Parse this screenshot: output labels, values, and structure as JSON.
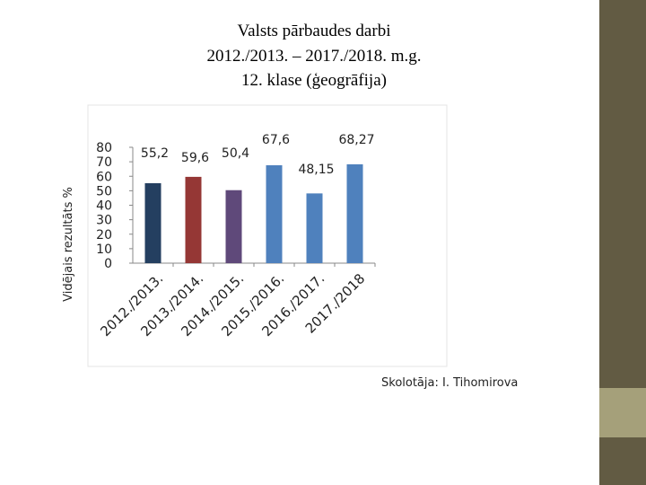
{
  "chart_data": {
    "type": "bar",
    "title": [
      "Valsts pārbaudes darbi",
      "2012./2013. – 2017./2018. m.g.",
      "12. klase (ģeogrāfija)"
    ],
    "y_label": "Vidējais rezultāts %",
    "categories": [
      "2012./2013.",
      "2013./2014.",
      "2014./2015.",
      "2015./2016.",
      "2016./2017.",
      "2017./2018"
    ],
    "values": [
      55.2,
      59.6,
      50.4,
      67.6,
      48.15,
      68.27
    ],
    "value_labels": [
      "55,2",
      "59,6",
      "50,4",
      "67,6",
      "48,15",
      "68,27"
    ],
    "colors": [
      "#243f60",
      "#953735",
      "#5f497a",
      "#4f81bd",
      "#4f81bd",
      "#4f81bd"
    ],
    "ylim": [
      0,
      80
    ],
    "yticks": [
      0,
      10,
      20,
      30,
      40,
      50,
      60,
      70,
      80
    ],
    "grid": false
  },
  "footer": "Skolotāja: I. Tihomirova"
}
